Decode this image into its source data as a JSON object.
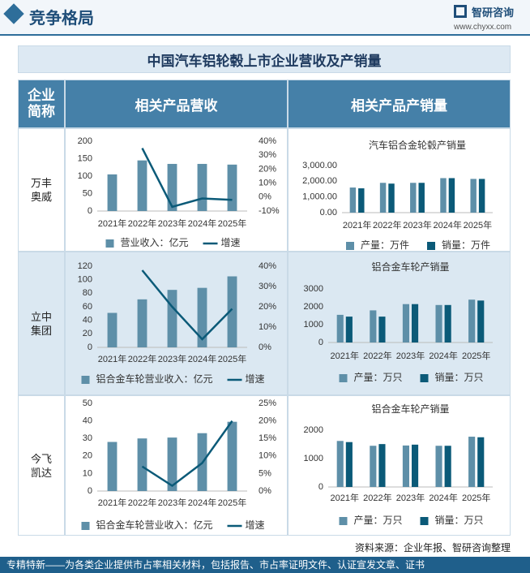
{
  "header": {
    "title": "竞争格局",
    "brand": "智研咨询",
    "url": "www.chyxx.com"
  },
  "table": {
    "title": "中国汽车铝轮毂上市企业营收及产销量",
    "columns": [
      "企业简称",
      "相关产品营收",
      "相关产品产销量"
    ],
    "companies": [
      "万丰奥威",
      "立中集团",
      "今飞凯达"
    ]
  },
  "chart_data": [
    {
      "type": "combo",
      "categories": [
        "2021年",
        "2022年",
        "2023年",
        "2024年",
        "2025年"
      ],
      "series": [
        {
          "name": "营业收入：亿元",
          "type": "bar",
          "color": "#5e8fa8",
          "values": [
            105,
            145,
            135,
            135,
            133
          ]
        },
        {
          "name": "增速",
          "type": "line",
          "axis": "y2",
          "color": "#0b5a78",
          "values": [
            null,
            35,
            -7,
            -1,
            -2
          ]
        }
      ],
      "ylim": [
        0,
        200
      ],
      "yticks": [
        0,
        50,
        100,
        150,
        200
      ],
      "y2lim": [
        -10,
        40
      ],
      "y2ticks": [
        {
          "value": -10,
          "label": "-10%"
        },
        {
          "value": 0,
          "label": "0%"
        },
        {
          "value": 10,
          "label": "10%"
        },
        {
          "value": 20,
          "label": "20%"
        },
        {
          "value": 30,
          "label": "30%"
        },
        {
          "value": 40,
          "label": "40%"
        }
      ],
      "grid": false
    },
    {
      "type": "bar",
      "title": "汽车铝合金轮毂产销量",
      "categories": [
        "2021年",
        "2022年",
        "2023年",
        "2024年",
        "2025年"
      ],
      "series": [
        {
          "name": "产量：万件",
          "color": "#5e8fa8",
          "values": [
            1600,
            1900,
            1900,
            2200,
            2150
          ]
        },
        {
          "name": "销量：万件",
          "color": "#0b5a78",
          "values": [
            1550,
            1850,
            1900,
            2200,
            2150
          ]
        }
      ],
      "ylim": [
        0,
        3000
      ],
      "yticks": [
        {
          "value": 0,
          "label": "0.00"
        },
        {
          "value": 1000,
          "label": "1,000.00"
        },
        {
          "value": 2000,
          "label": "2,000.00"
        },
        {
          "value": 3000,
          "label": "3,000.00"
        }
      ],
      "grid": false
    },
    {
      "type": "combo",
      "categories": [
        "2021年",
        "2022年",
        "2023年",
        "2024年",
        "2025年"
      ],
      "series": [
        {
          "name": "铝合金车轮营业收入：亿元",
          "type": "bar",
          "color": "#5e8fa8",
          "values": [
            51,
            71,
            85,
            88,
            105
          ]
        },
        {
          "name": "增速",
          "type": "line",
          "axis": "y2",
          "color": "#0b5a78",
          "values": [
            null,
            38,
            20,
            4,
            19
          ]
        }
      ],
      "ylim": [
        0,
        120
      ],
      "yticks": [
        0,
        20,
        40,
        60,
        80,
        100,
        120
      ],
      "y2lim": [
        0,
        40
      ],
      "y2ticks": [
        {
          "value": 0,
          "label": "0%"
        },
        {
          "value": 10,
          "label": "10%"
        },
        {
          "value": 20,
          "label": "20%"
        },
        {
          "value": 30,
          "label": "30%"
        },
        {
          "value": 40,
          "label": "40%"
        }
      ],
      "grid": false
    },
    {
      "type": "bar",
      "title": "铝合金车轮产销量",
      "categories": [
        "2021年",
        "2022年",
        "2023年",
        "2024年",
        "2025年"
      ],
      "series": [
        {
          "name": "产量：万只",
          "color": "#5e8fa8",
          "values": [
            1550,
            1800,
            2150,
            2100,
            2400
          ]
        },
        {
          "name": "销量：万只",
          "color": "#0b5a78",
          "values": [
            1450,
            1450,
            2150,
            2100,
            2350
          ]
        }
      ],
      "ylim": [
        0,
        3000
      ],
      "yticks": [
        0,
        1000,
        2000,
        3000
      ],
      "grid": false
    },
    {
      "type": "combo",
      "categories": [
        "2021年",
        "2022年",
        "2023年",
        "2024年",
        "2025年"
      ],
      "series": [
        {
          "name": "铝合金车轮营业收入：亿元",
          "type": "bar",
          "color": "#5e8fa8",
          "values": [
            28,
            30,
            30.5,
            33,
            39.5
          ]
        },
        {
          "name": "增速",
          "type": "line",
          "axis": "y2",
          "color": "#0b5a78",
          "values": [
            null,
            7,
            1.5,
            8,
            20
          ]
        }
      ],
      "ylim": [
        0,
        50
      ],
      "yticks": [
        0,
        10,
        20,
        30,
        40,
        50
      ],
      "y2lim": [
        0,
        25
      ],
      "y2ticks": [
        {
          "value": 0,
          "label": "0%"
        },
        {
          "value": 5,
          "label": "5%"
        },
        {
          "value": 10,
          "label": "10%"
        },
        {
          "value": 15,
          "label": "15%"
        },
        {
          "value": 20,
          "label": "20%"
        },
        {
          "value": 25,
          "label": "25%"
        }
      ],
      "grid": false
    },
    {
      "type": "bar",
      "title": "铝合金车轮产销量",
      "categories": [
        "2021年",
        "2022年",
        "2023年",
        "2024年",
        "2025年"
      ],
      "series": [
        {
          "name": "产量：万只",
          "color": "#5e8fa8",
          "values": [
            1620,
            1450,
            1460,
            1450,
            1770
          ]
        },
        {
          "name": "销量：万只",
          "color": "#0b5a78",
          "values": [
            1580,
            1510,
            1490,
            1450,
            1750
          ]
        }
      ],
      "ylim": [
        0,
        2200
      ],
      "yticks": [
        0,
        1000,
        2000
      ],
      "grid": false
    }
  ],
  "footer": {
    "source": "资料来源：企业年报、智研咨询整理",
    "banner": "专精特新——为各类企业提供市占率相关材料，包括报告、市占率证明文件、认证宣发文章、证书"
  }
}
